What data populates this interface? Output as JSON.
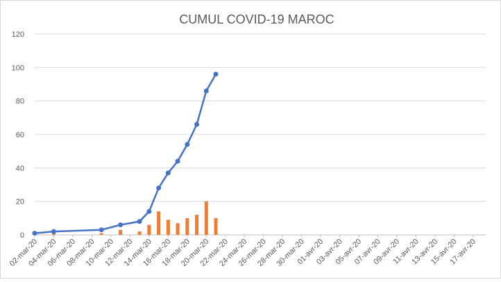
{
  "chart_data": {
    "type": "line-bar",
    "title": "CUMUL COVID-19 MAROC",
    "x": [
      "02-mar-20",
      "04-mar-20",
      "09-mar-20",
      "11-mar-20",
      "13-mar-20",
      "14-mar-20",
      "15-mar-20",
      "16-mar-20",
      "17-mar-20",
      "18-mar-20",
      "19-mar-20",
      "20-mar-20",
      "21-mar-20"
    ],
    "series": [
      {
        "kind": "bar",
        "color": "#ed7d31",
        "values": [
          null,
          1,
          1,
          3,
          2,
          6,
          14,
          9,
          7,
          10,
          12,
          20,
          10
        ]
      },
      {
        "kind": "line",
        "color": "#4472c4",
        "values": [
          1,
          2,
          3,
          6,
          8,
          14,
          28,
          37,
          44,
          54,
          66,
          86,
          96
        ]
      }
    ],
    "xticks": [
      "02-mar-20",
      "04-mar-20",
      "06-mar-20",
      "08-mar-20",
      "10-mar-20",
      "12-mar-20",
      "14-mar-20",
      "16-mar-20",
      "18-mar-20",
      "20-mar-20",
      "22-mar-20",
      "24-mar-20",
      "26-mar-20",
      "28-mar-20",
      "30-mar-20",
      "01-avr-20",
      "03-avr-20",
      "05-avr-20",
      "07-avr-20",
      "09-avr-20",
      "11-avr-20",
      "13-avr-20",
      "15-avr-20",
      "17-avr-20"
    ],
    "ylim": [
      0,
      120
    ],
    "yticks": [
      0,
      20,
      40,
      60,
      80,
      100,
      120
    ],
    "grid": true
  }
}
